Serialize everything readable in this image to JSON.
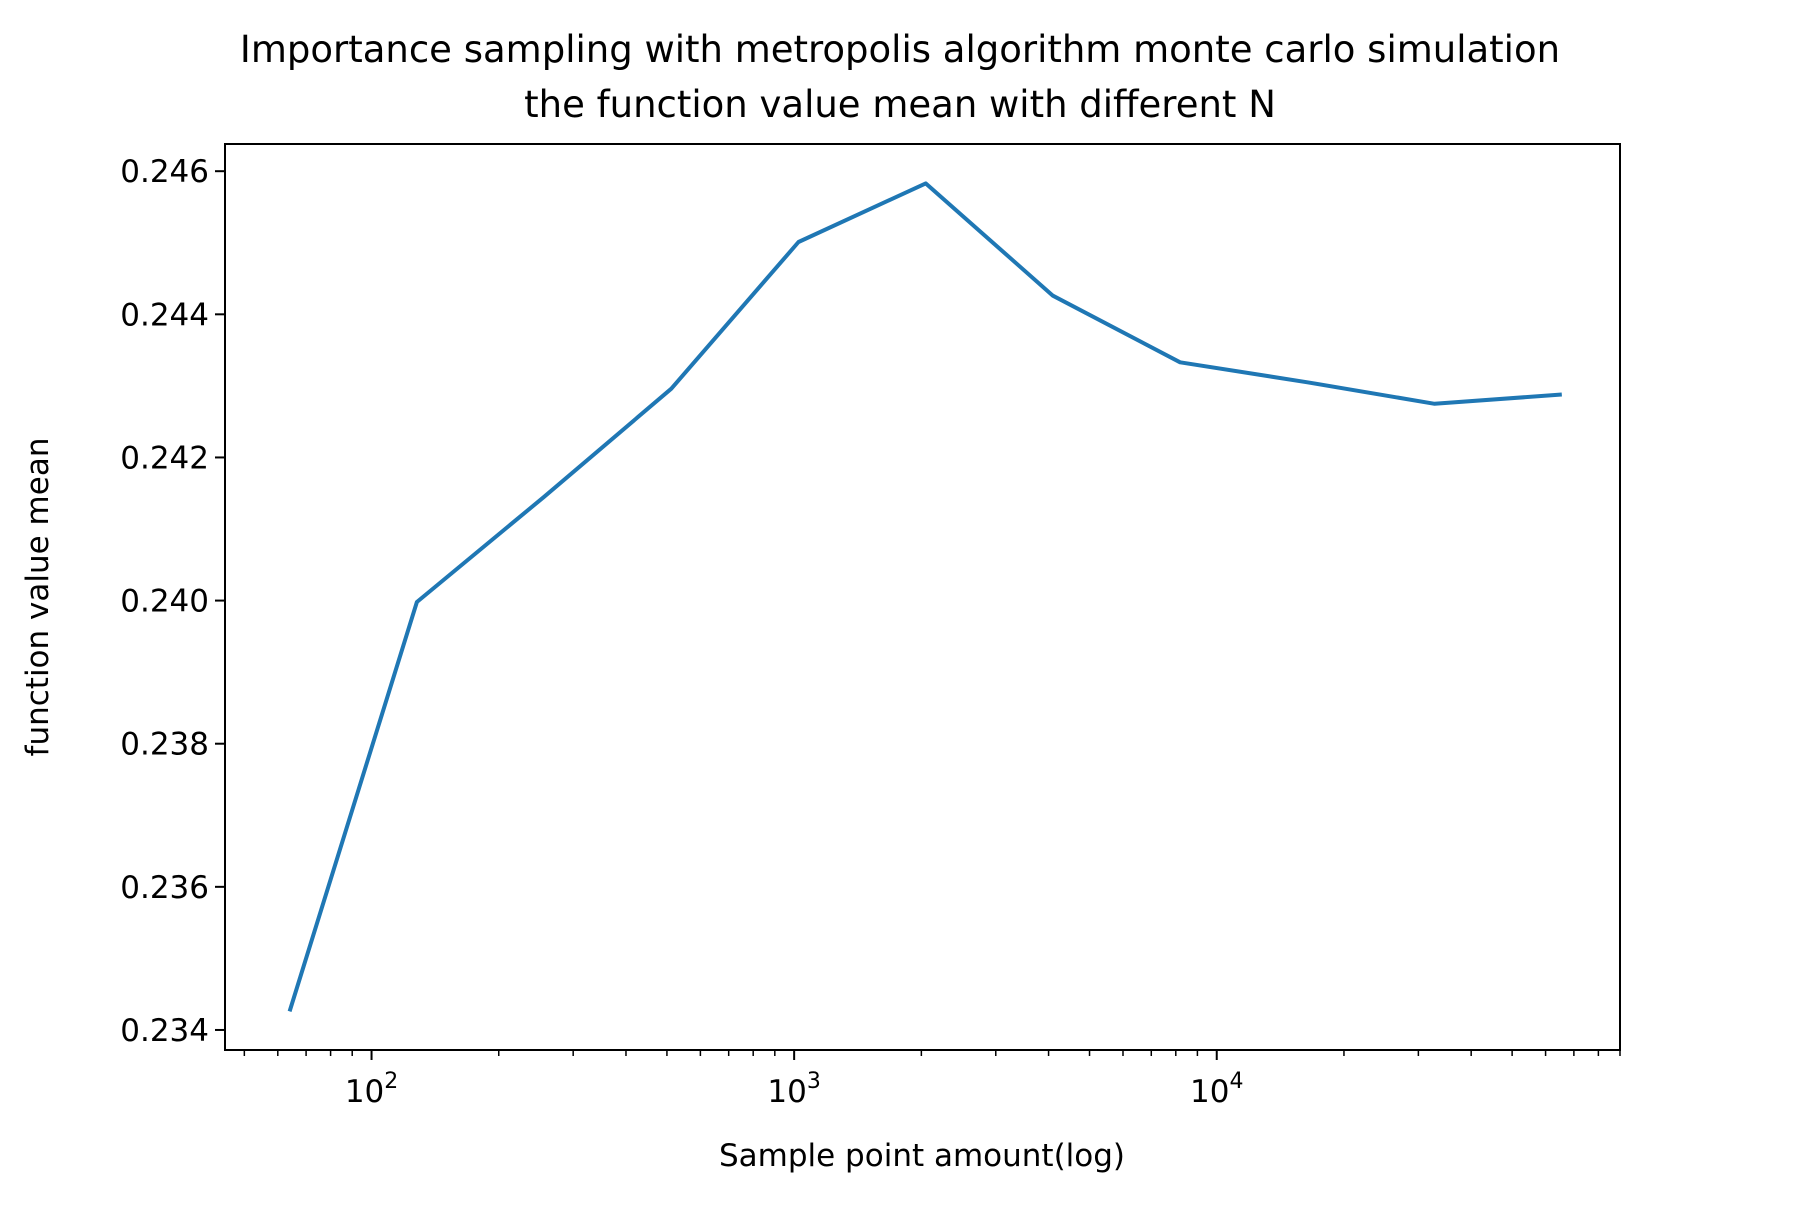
{
  "chart_data": {
    "type": "line",
    "title_line1": "Importance sampling with metropolis algorithm monte carlo simulation",
    "title_line2": "the function value mean with different N",
    "xlabel": "Sample point amount(log)",
    "ylabel": "function value mean",
    "x_scale": "log",
    "xlim": [
      45,
      90000
    ],
    "ylim": [
      0.23372,
      0.24638
    ],
    "grid": false,
    "y_ticks": [
      "0.234",
      "0.236",
      "0.238",
      "0.240",
      "0.242",
      "0.244",
      "0.246"
    ],
    "x_ticks": [
      {
        "base": "10",
        "exp": "2"
      },
      {
        "base": "10",
        "exp": "3"
      },
      {
        "base": "10",
        "exp": "4"
      }
    ],
    "line_color": "#1f77b4",
    "series": [
      {
        "x": [
          64,
          128,
          256,
          512,
          1024,
          2048,
          4096,
          8192,
          16384,
          32768,
          65536
        ],
        "values": [
          0.23426,
          0.23998,
          0.24145,
          0.24296,
          0.24501,
          0.24583,
          0.24426,
          0.24333,
          0.24305,
          0.24275,
          0.24288
        ]
      }
    ]
  }
}
